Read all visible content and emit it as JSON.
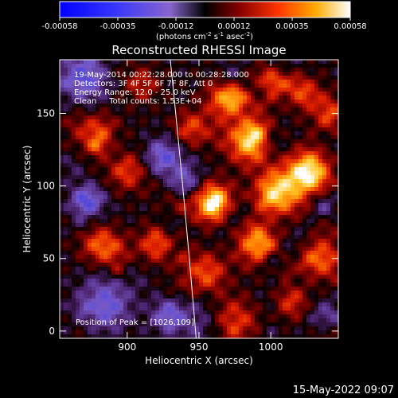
{
  "colorbar": {
    "tick_labels": [
      "-0.00058",
      "-0.00035",
      "-0.00012",
      "0.00012",
      "0.00035",
      "0.00058"
    ],
    "unit_prefix": "(photons cm",
    "unit_exp1": "-2",
    "unit_mid": " s",
    "unit_exp2": "-1",
    "unit_mid2": " asec",
    "unit_exp3": "-2",
    "unit_suffix": ")"
  },
  "chart_data": {
    "type": "heatmap",
    "title": "Reconstructed RHESSI Image",
    "xlabel": "Heliocentric X (arcsec)",
    "ylabel": "Heliocentric Y (arcsec)",
    "xlim": [
      853,
      1047
    ],
    "ylim": [
      -5,
      187
    ],
    "x_ticks": [
      900,
      950,
      1000
    ],
    "y_ticks": [
      0,
      50,
      100,
      150
    ],
    "colorbar_range": [
      -0.00058,
      0.00058
    ],
    "peak": [
      1026,
      109
    ],
    "limb_x": [
      930,
      940,
      948
    ],
    "annotations": {
      "time": "19-May-2014 00:22:28.000 to 00:28:28.000",
      "detectors": "Detectors: 3F 4F 5F 6F 7F 8F, Att 0",
      "energy": "Energy Range: 12.0 - 25.0 keV",
      "clean": "Clean     Total counts: 1.53E+04",
      "peak_text": "Position of Peak = [1026,109]"
    }
  },
  "footer_date": "15-May-2022 09:07"
}
